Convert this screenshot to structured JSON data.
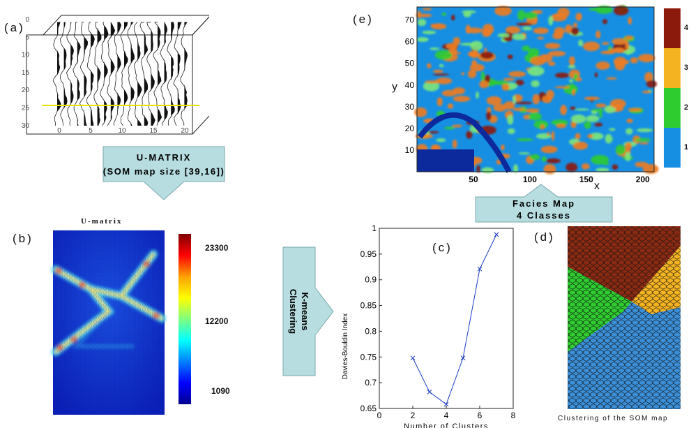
{
  "labels": {
    "a": "(a)",
    "b": "(b)",
    "c": "(c)",
    "d": "(d)",
    "e": "(e)"
  },
  "umatrix_arrow": {
    "line1": "U-MATRIX",
    "line2": "(SOM map size [39,16])"
  },
  "kmeans_arrow": {
    "line1": "K-means",
    "line2": "Clustering"
  },
  "facies_arrow": {
    "line1": "Facies Map",
    "line2": "4 Classes"
  },
  "seismic": {
    "y_ticks": [
      "0",
      "5",
      "10",
      "15",
      "20",
      "25",
      "30"
    ],
    "x_ticks": [
      "0",
      "5",
      "10",
      "15",
      "20"
    ]
  },
  "umatrix": {
    "title": "U-matrix",
    "colorbar_ticks": [
      "23300",
      "12200",
      "1090"
    ]
  },
  "facies": {
    "xlabel": "x",
    "ylabel": "y",
    "x_ticks": [
      "50",
      "100",
      "150",
      "200"
    ],
    "y_ticks": [
      "70",
      "60",
      "50",
      "40",
      "30",
      "20",
      "10"
    ],
    "classes": [
      {
        "label": "4",
        "color": "#8b1a0d"
      },
      {
        "label": "3",
        "color": "#f4b321"
      },
      {
        "label": "2",
        "color": "#2fcc30"
      },
      {
        "label": "1",
        "color": "#168fe3"
      }
    ]
  },
  "som_clusters": {
    "caption": "Clustering of the SOM map",
    "colors": {
      "c1": "#3b8fd8",
      "c2": "#2fcc30",
      "c3": "#f4b321",
      "c4": "#8b2a12"
    }
  },
  "chart_data": {
    "type": "line",
    "xlabel": "Number of Clusters",
    "ylabel": "Davies-Bouldin Index",
    "xlim": [
      0,
      8
    ],
    "ylim": [
      0.65,
      1
    ],
    "x_ticks": [
      "0",
      "2",
      "4",
      "6",
      "8"
    ],
    "y_ticks": [
      "1",
      "0.95",
      "0.9",
      "0.85",
      "0.8",
      "0.75",
      "0.7",
      "0.65"
    ],
    "series": [
      {
        "x": [
          2,
          3,
          4,
          5,
          6,
          7
        ],
        "y": [
          0.748,
          0.682,
          0.658,
          0.748,
          0.921,
          0.988
        ],
        "color": "#1a3cc8"
      }
    ]
  }
}
